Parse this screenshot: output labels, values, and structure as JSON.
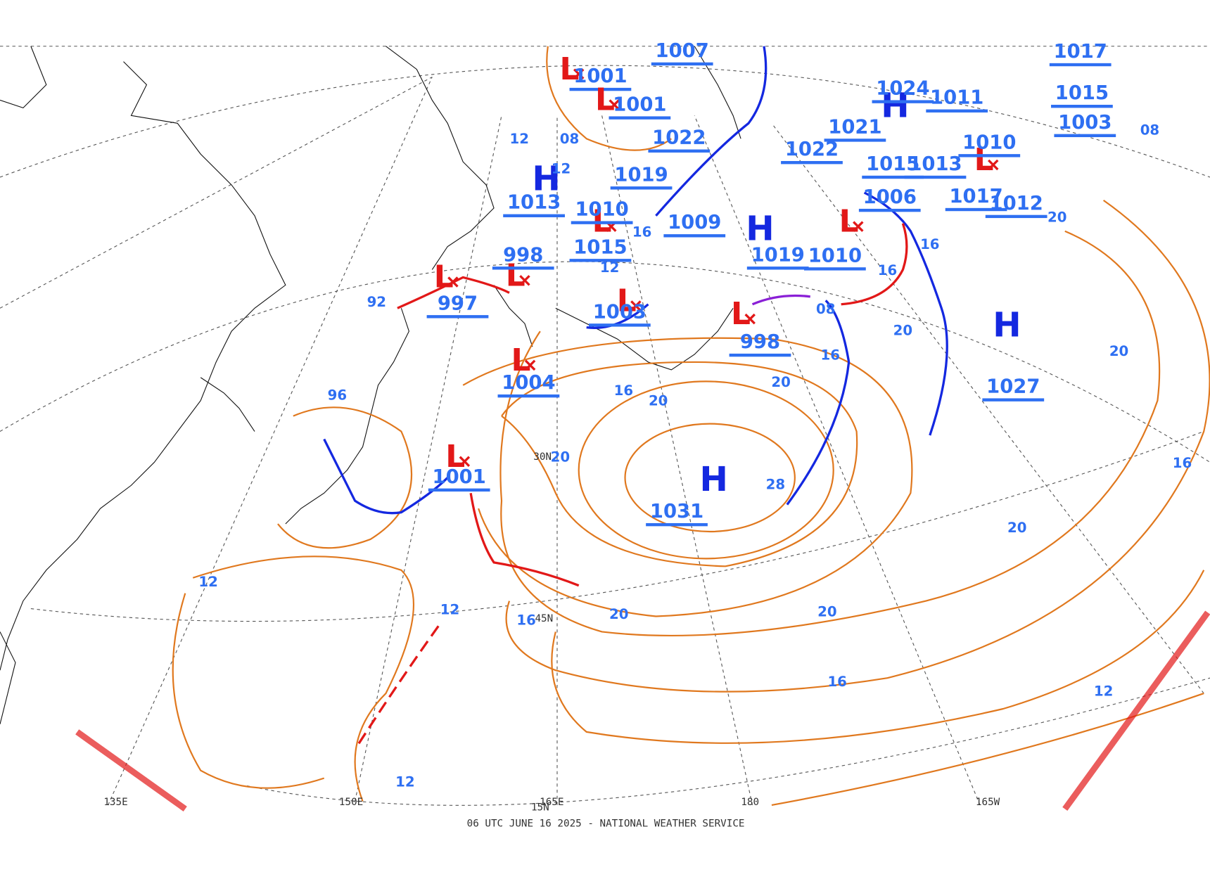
{
  "footer": "06 UTC JUNE 16 2025 - NATIONAL WEATHER SERVICE",
  "grid_labels": [
    "135E",
    "150E",
    "165E",
    "180",
    "165W",
    "15N",
    "30N",
    "45N"
  ],
  "centers": [
    {
      "symbol": "H",
      "pressure": "1031"
    },
    {
      "symbol": "H",
      "pressure": "1027"
    },
    {
      "symbol": "L",
      "pressure": "1001"
    },
    {
      "symbol": "L",
      "pressure": "1004"
    },
    {
      "symbol": "L",
      "pressure": "997"
    },
    {
      "symbol": "L",
      "pressure": "998"
    },
    {
      "symbol": "L",
      "pressure": "998"
    },
    {
      "symbol": "L",
      "pressure": "1003"
    },
    {
      "symbol": "H",
      "pressure": "1013"
    },
    {
      "symbol": "L",
      "pressure": "1001"
    },
    {
      "symbol": "L",
      "pressure": "1001"
    },
    {
      "symbol": "L",
      "pressure": "1015"
    },
    {
      "symbol": "H",
      "pressure": "1019"
    },
    {
      "symbol": "L",
      "pressure": "1010"
    },
    {
      "symbol": "H",
      "pressure": "1006"
    },
    {
      "symbol": "L",
      "pressure": "1017"
    }
  ],
  "pressure_labels": [
    "1007",
    "1022",
    "1022",
    "1019",
    "1010",
    "1009",
    "1021",
    "1015",
    "1013",
    "1012",
    "1011",
    "1010",
    "1003",
    "1024",
    "1017",
    "1015"
  ],
  "isobar_labels": [
    "20",
    "20",
    "20",
    "20",
    "20",
    "20",
    "20",
    "20",
    "20",
    "16",
    "16",
    "16",
    "16",
    "16",
    "16",
    "16",
    "16",
    "12",
    "12",
    "12",
    "12",
    "12",
    "12",
    "12",
    "08",
    "08",
    "08",
    "28",
    "92",
    "96"
  ]
}
